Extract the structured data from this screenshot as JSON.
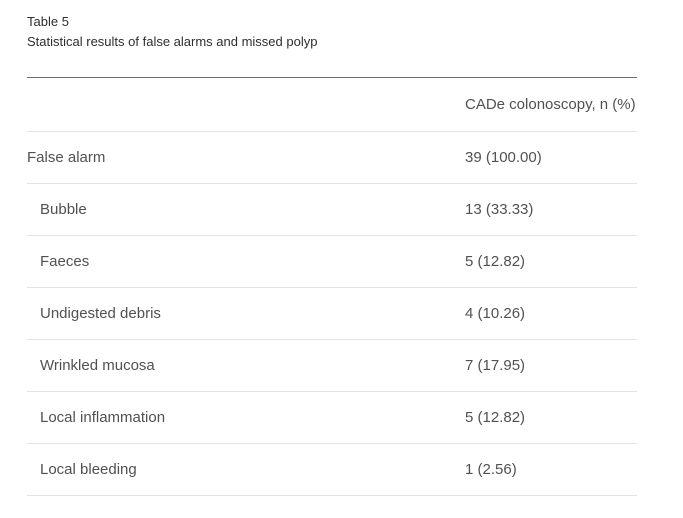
{
  "caption": {
    "label": "Table 5",
    "title": "Statistical results of false alarms and missed polyp"
  },
  "table": {
    "column_header": "CADe colonoscopy, n (%)",
    "rows": [
      {
        "label": "False alarm",
        "value": "39 (100.00)",
        "indent": false
      },
      {
        "label": "Bubble",
        "value": "13 (33.33)",
        "indent": true
      },
      {
        "label": "Faeces",
        "value": "5 (12.82)",
        "indent": true
      },
      {
        "label": "Undigested debris",
        "value": "4 (10.26)",
        "indent": true
      },
      {
        "label": "Wrinkled mucosa",
        "value": "7 (17.95)",
        "indent": true
      },
      {
        "label": "Local inflammation",
        "value": "5 (12.82)",
        "indent": true
      },
      {
        "label": "Local bleeding",
        "value": "1 (2.56)",
        "indent": true
      }
    ]
  },
  "colors": {
    "caption_text": "#2e2e2e",
    "body_text": "#515151",
    "heavy_rule": "#6d6d6d",
    "light_rule": "#e2e2e2"
  }
}
